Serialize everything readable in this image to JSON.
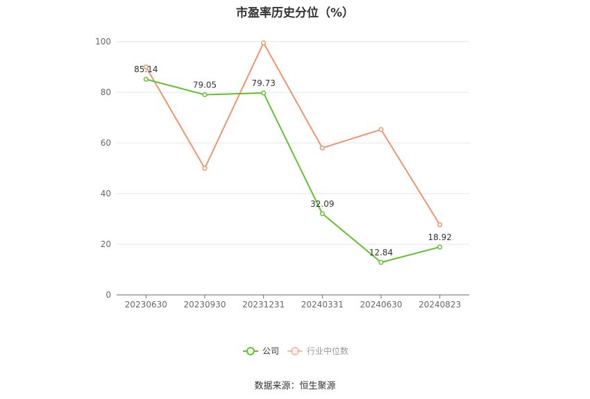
{
  "chart_data": {
    "type": "line",
    "title": "市盈率历史分位（%）",
    "categories": [
      "20230630",
      "20230930",
      "20231231",
      "20240331",
      "20240630",
      "20240823"
    ],
    "ylim": [
      0,
      100
    ],
    "yticks": [
      0,
      20,
      40,
      60,
      80,
      100
    ],
    "grid": true,
    "legend_position": "bottom",
    "series": [
      {
        "name": "公司",
        "color": "#5ec22b",
        "values": [
          85.14,
          79.05,
          79.73,
          32.09,
          12.84,
          18.92
        ],
        "labels": [
          "85.14",
          "79.05",
          "79.73",
          "32.09",
          "12.84",
          "18.92"
        ]
      },
      {
        "name": "行业中位数",
        "color": "#f0936a",
        "values": [
          90,
          50,
          99.5,
          58,
          65.3,
          27.7
        ]
      }
    ],
    "source": "数据来源：恒生聚源"
  }
}
